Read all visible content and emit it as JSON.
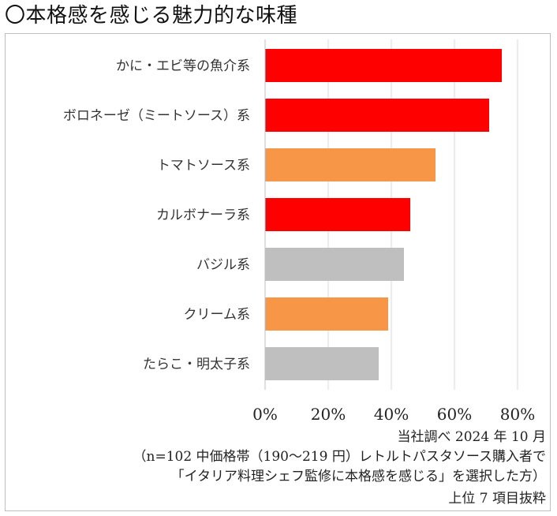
{
  "title": "〇本格感を感じる魅力的な味種",
  "chart_data": {
    "type": "bar",
    "orientation": "horizontal",
    "title": "〇本格感を感じる魅力的な味種",
    "categories": [
      "かに・エビ等の魚介系",
      "ボロネーゼ（ミートソース）系",
      "トマトソース系",
      "カルボナーラ系",
      "バジル系",
      "クリーム系",
      "たらこ・明太子系"
    ],
    "values": [
      75,
      71,
      54,
      46,
      44,
      39,
      36
    ],
    "bar_colors": [
      "#ff0000",
      "#ff0000",
      "#f79646",
      "#ff0000",
      "#bfbfbf",
      "#f79646",
      "#bfbfbf"
    ],
    "xlim": [
      0,
      80
    ],
    "xticks": [
      0,
      20,
      40,
      60,
      80
    ],
    "xtick_labels": [
      "0%",
      "20%",
      "40%",
      "60%",
      "80%"
    ],
    "grid": true,
    "xlabel": "",
    "ylabel": ""
  },
  "notes": {
    "source": "当社調べ  2024 年 10 月",
    "sample": "（n=102  中価格帯（190〜219 円）レトルトパスタソース購入者で",
    "question": "「イタリア料理シェフ監修に本格感を感じる」を選択した方）",
    "excerpt": "上位 7 項目抜粋"
  }
}
